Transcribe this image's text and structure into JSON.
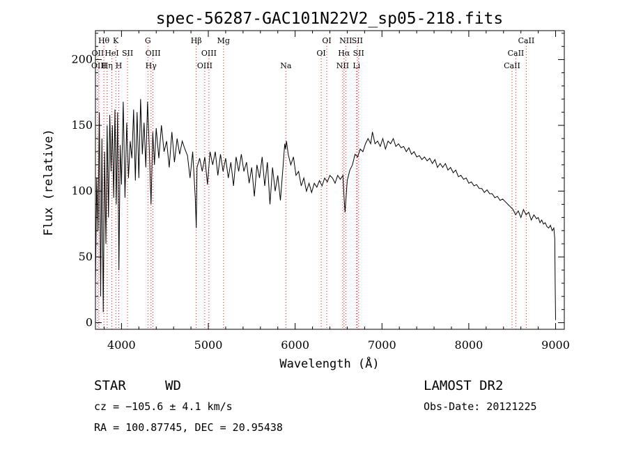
{
  "chart_data": {
    "type": "line",
    "title": "spec-56287-GAC101N22V2_sp05-218.fits",
    "xlabel": "Wavelength (Å)",
    "ylabel": "Flux (relative)",
    "xlim": [
      3700,
      9100
    ],
    "ylim": [
      -5,
      222
    ],
    "xticks": [
      4000,
      5000,
      6000,
      7000,
      8000,
      9000
    ],
    "yticks": [
      0,
      50,
      100,
      150,
      200
    ],
    "grid": false,
    "series": [
      {
        "x": [
          3700,
          3715,
          3730,
          3745,
          3760,
          3775,
          3790,
          3805,
          3820,
          3835,
          3850,
          3865,
          3880,
          3895,
          3910,
          3925,
          3940,
          3955,
          3970,
          3985,
          4000,
          4020,
          4040,
          4060,
          4080,
          4100,
          4120,
          4140,
          4160,
          4180,
          4200,
          4220,
          4240,
          4260,
          4280,
          4300,
          4320,
          4340,
          4360,
          4380,
          4400,
          4430,
          4460,
          4490,
          4520,
          4550,
          4580,
          4610,
          4640,
          4670,
          4700,
          4730,
          4760,
          4790,
          4820,
          4850,
          4861,
          4870,
          4900,
          4930,
          4960,
          4990,
          5020,
          5050,
          5080,
          5110,
          5140,
          5170,
          5200,
          5230,
          5260,
          5290,
          5320,
          5350,
          5380,
          5410,
          5440,
          5470,
          5500,
          5530,
          5560,
          5590,
          5620,
          5650,
          5680,
          5710,
          5740,
          5770,
          5800,
          5830,
          5860,
          5880,
          5890,
          5900,
          5920,
          5950,
          5980,
          6010,
          6040,
          6070,
          6100,
          6130,
          6160,
          6190,
          6220,
          6250,
          6280,
          6310,
          6340,
          6370,
          6400,
          6430,
          6460,
          6490,
          6520,
          6550,
          6563,
          6575,
          6600,
          6630,
          6660,
          6690,
          6720,
          6750,
          6780,
          6810,
          6840,
          6870,
          6890,
          6920,
          6950,
          6980,
          7010,
          7040,
          7070,
          7100,
          7130,
          7160,
          7190,
          7220,
          7250,
          7280,
          7310,
          7340,
          7370,
          7400,
          7430,
          7460,
          7490,
          7520,
          7550,
          7580,
          7610,
          7640,
          7670,
          7700,
          7730,
          7760,
          7790,
          7820,
          7850,
          7880,
          7910,
          7940,
          7970,
          8000,
          8030,
          8060,
          8090,
          8120,
          8150,
          8180,
          8210,
          8240,
          8270,
          8300,
          8330,
          8360,
          8390,
          8420,
          8450,
          8480,
          8510,
          8540,
          8570,
          8600,
          8630,
          8660,
          8690,
          8720,
          8750,
          8780,
          8800,
          8820,
          8840,
          8860,
          8880,
          8900,
          8920,
          8940,
          8960,
          8980,
          8990,
          8995,
          9000
        ],
        "y": [
          30,
          110,
          70,
          160,
          20,
          140,
          8,
          130,
          60,
          150,
          80,
          158,
          115,
          150,
          95,
          162,
          90,
          160,
          40,
          135,
          105,
          168,
          95,
          152,
          110,
          138,
          125,
          162,
          108,
          160,
          110,
          170,
          128,
          152,
          118,
          168,
          132,
          90,
          145,
          120,
          148,
          125,
          150,
          130,
          138,
          118,
          145,
          122,
          140,
          128,
          138,
          132,
          127,
          110,
          130,
          95,
          72,
          118,
          125,
          115,
          126,
          105,
          130,
          120,
          130,
          112,
          128,
          115,
          125,
          110,
          122,
          104,
          126,
          115,
          128,
          115,
          122,
          106,
          118,
          96,
          120,
          110,
          126,
          104,
          122,
          90,
          118,
          100,
          112,
          93,
          118,
          136,
          132,
          138,
          128,
          120,
          126,
          112,
          115,
          104,
          110,
          100,
          106,
          99,
          106,
          103,
          108,
          104,
          110,
          107,
          112,
          110,
          106,
          112,
          109,
          112,
          96,
          84,
          108,
          116,
          120,
          128,
          126,
          132,
          130,
          136,
          140,
          136,
          145,
          136,
          138,
          134,
          140,
          132,
          138,
          136,
          140,
          134,
          136,
          133,
          134,
          130,
          133,
          128,
          130,
          126,
          127,
          124,
          126,
          123,
          125,
          121,
          124,
          118,
          121,
          118,
          121,
          116,
          118,
          114,
          116,
          111,
          112,
          109,
          110,
          106,
          107,
          104,
          105,
          102,
          102,
          99,
          101,
          98,
          98,
          95,
          96,
          93,
          94,
          92,
          90,
          88,
          86,
          82,
          85,
          80,
          86,
          82,
          84,
          78,
          82,
          79,
          80,
          76,
          78,
          75,
          76,
          73,
          72,
          74,
          70,
          72,
          64,
          30,
          2
        ]
      }
    ],
    "line_labels": [
      {
        "text": "Hθ",
        "x": 3797,
        "row": 0,
        "color": "#ff0000"
      },
      {
        "text": "K",
        "x": 3934,
        "row": 0,
        "color": "#ff0000"
      },
      {
        "text": "OII",
        "x": 3727,
        "row": 1,
        "color": "#ff0000"
      },
      {
        "text": "HeI",
        "x": 3889,
        "row": 1,
        "color": "#ff0000"
      },
      {
        "text": "SII",
        "x": 4070,
        "row": 1,
        "color": "#ff0000"
      },
      {
        "text": "OIII",
        "x": 3740,
        "row": 2,
        "color": "#ff0000"
      },
      {
        "text": "Hη",
        "x": 3835,
        "row": 2,
        "color": "#ff0000"
      },
      {
        "text": "H",
        "x": 3969,
        "row": 2,
        "color": "#ff0000"
      },
      {
        "text": "G",
        "x": 4304,
        "row": 0,
        "color": "#ff0000"
      },
      {
        "text": "OIII",
        "x": 4363,
        "row": 1,
        "color": "#ff0000"
      },
      {
        "text": "Hγ",
        "x": 4340,
        "row": 2,
        "color": "#ff0000"
      },
      {
        "text": "Hβ",
        "x": 4861,
        "row": 0,
        "color": "#ff0000"
      },
      {
        "text": "OIII",
        "x": 5007,
        "row": 1,
        "color": "#ff0000"
      },
      {
        "text": "OIII",
        "x": 4959,
        "row": 2,
        "color": "#ff0000"
      },
      {
        "text": "Mg",
        "x": 5175,
        "row": 0,
        "color": "#ff0000"
      },
      {
        "text": "Na",
        "x": 5893,
        "row": 2,
        "color": "#ff0000"
      },
      {
        "text": "OI",
        "x": 6364,
        "row": 0,
        "color": "#ff0000"
      },
      {
        "text": "OI",
        "x": 6300,
        "row": 1,
        "color": "#ff0000"
      },
      {
        "text": "NII",
        "x": 6583,
        "row": 0,
        "color": "#ff0000"
      },
      {
        "text": "SII",
        "x": 6716,
        "row": 0,
        "color": "#ff0000"
      },
      {
        "text": "Hα",
        "x": 6563,
        "row": 1,
        "color": "#ff0000"
      },
      {
        "text": "SII",
        "x": 6731,
        "row": 1,
        "color": "#ff0000"
      },
      {
        "text": "NII",
        "x": 6548,
        "row": 2,
        "color": "#ff0000"
      },
      {
        "text": "Li",
        "x": 6707,
        "row": 2,
        "color": "#ff0000"
      },
      {
        "text": "CaII",
        "x": 8662,
        "row": 0,
        "color": "#ff0000"
      },
      {
        "text": "CaII",
        "x": 8542,
        "row": 1,
        "color": "#ff0000"
      },
      {
        "text": "CaII",
        "x": 8498,
        "row": 2,
        "color": "#ff0000"
      }
    ]
  },
  "info": {
    "class": "STAR",
    "subclass": "WD",
    "survey": "LAMOST DR2",
    "cz": "cz = −105.6 ± 4.1 km/s",
    "obs_date": "Obs-Date: 20121225",
    "coords": "RA = 100.87745, DEC =  20.95438"
  }
}
